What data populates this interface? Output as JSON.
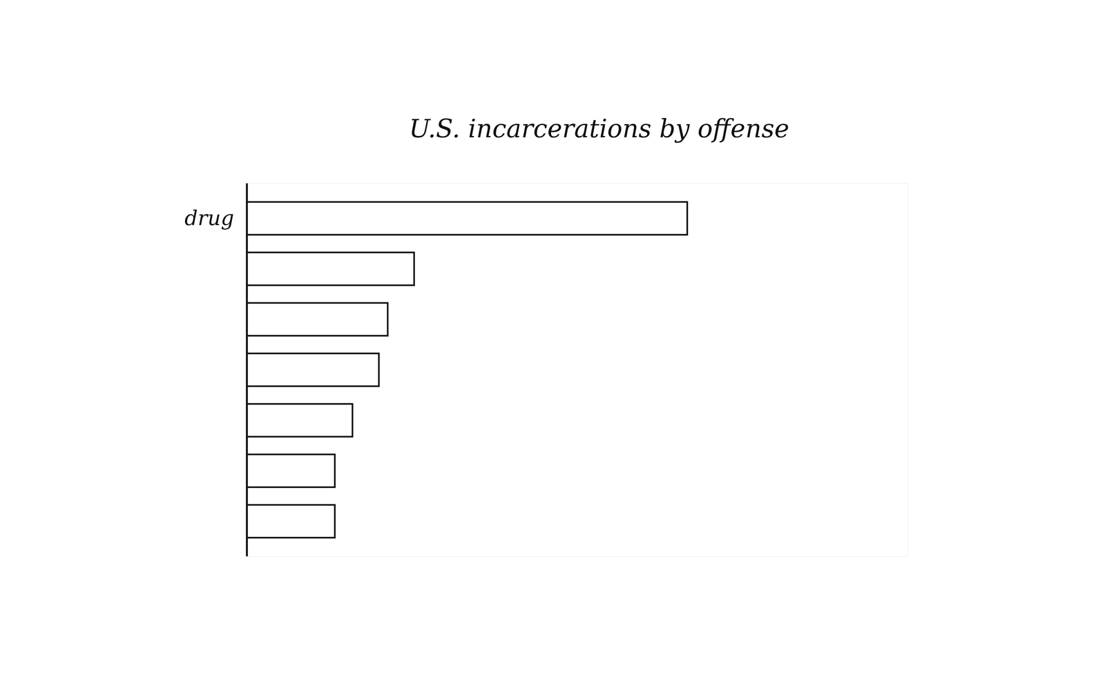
{
  "chart_data": {
    "type": "bar",
    "title": "U.S. incarcerations by offense",
    "orientation": "horizontal",
    "categories": [
      "drug",
      null,
      null,
      null,
      null,
      null,
      null
    ],
    "values": [
      100,
      38,
      32,
      30,
      24,
      20,
      20
    ],
    "color": "#ffffff",
    "xlim": [
      0,
      150
    ],
    "tick_labels": "y",
    "grid": false
  }
}
